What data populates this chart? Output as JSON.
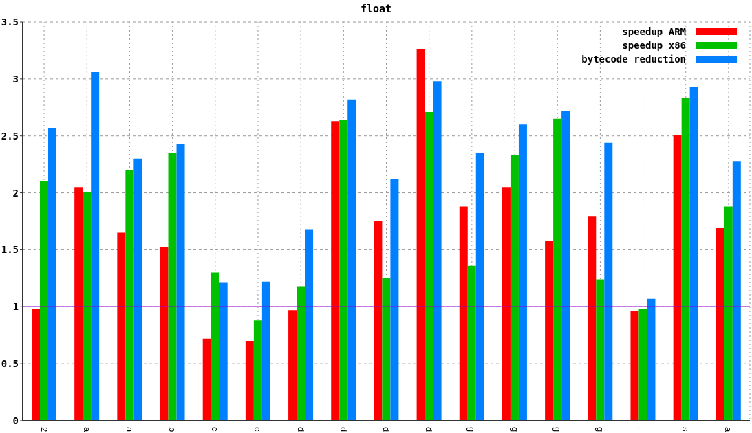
{
  "chart_data": {
    "type": "bar",
    "title": "float",
    "categories": [
      "2",
      "a",
      "a",
      "b",
      "c",
      "c",
      "d",
      "d",
      "d",
      "d",
      "g",
      "g",
      "g",
      "g",
      "j",
      "s",
      "a"
    ],
    "series": [
      {
        "name": "speedup ARM",
        "color": "#ff0000",
        "values": [
          0.98,
          2.05,
          1.65,
          1.52,
          0.72,
          0.7,
          0.97,
          2.63,
          1.75,
          3.26,
          1.88,
          2.05,
          1.58,
          1.79,
          0.96,
          2.51,
          1.69
        ]
      },
      {
        "name": "speedup x86",
        "color": "#00c000",
        "values": [
          2.1,
          2.01,
          2.2,
          2.35,
          1.3,
          0.88,
          1.18,
          2.64,
          1.25,
          2.71,
          1.36,
          2.33,
          2.65,
          1.24,
          0.98,
          2.83,
          1.88
        ]
      },
      {
        "name": "bytecode reduction",
        "color": "#0080ff",
        "values": [
          2.57,
          3.06,
          2.3,
          2.43,
          1.21,
          1.22,
          1.68,
          2.82,
          2.12,
          2.98,
          2.35,
          2.6,
          2.72,
          2.44,
          1.07,
          2.93,
          2.28
        ]
      }
    ],
    "ylim": [
      0,
      3.5
    ],
    "yticks": [
      {
        "value": 0,
        "label": "0"
      },
      {
        "value": 0.5,
        "label": "0.5"
      },
      {
        "value": 1,
        "label": "1"
      },
      {
        "value": 1.5,
        "label": "1.5"
      },
      {
        "value": 2,
        "label": "2"
      },
      {
        "value": 2.5,
        "label": "2.5"
      },
      {
        "value": 3,
        "label": "3"
      },
      {
        "value": 3.5,
        "label": "3.5"
      }
    ],
    "ref_lines": [
      {
        "axis": "y",
        "value": 1,
        "color": "#9400d3"
      }
    ],
    "grid": true,
    "legend": "top right"
  }
}
